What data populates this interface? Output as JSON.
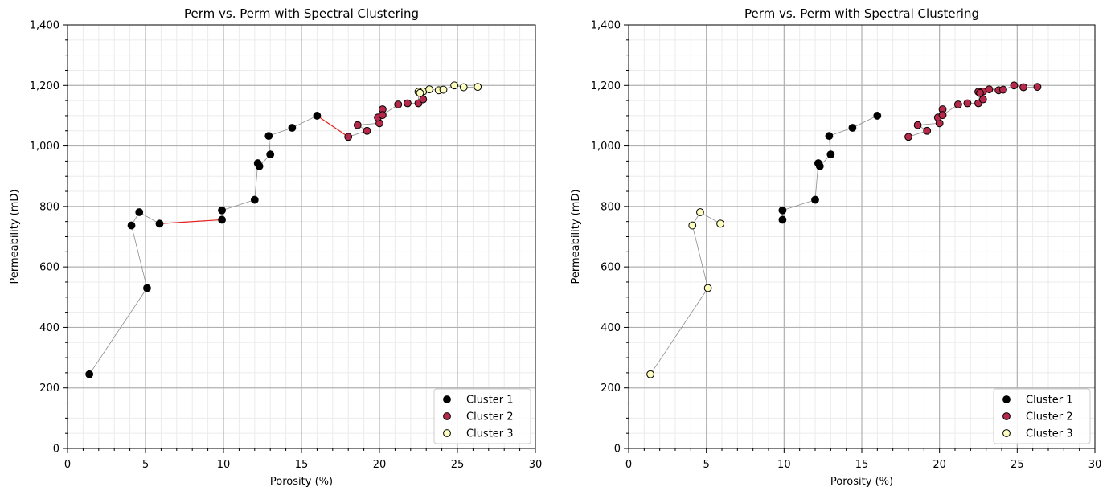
{
  "chart_data": [
    {
      "type": "scatter",
      "title": "Perm vs. Perm with Spectral Clustering",
      "xlabel": "Porosity (%)",
      "ylabel": "Permeability (mD)",
      "xlim": [
        0,
        30
      ],
      "ylim": [
        0,
        1400
      ],
      "x_ticks": [
        0,
        5,
        10,
        15,
        20,
        25,
        30
      ],
      "x_tick_labels": [
        "0",
        "5",
        "10",
        "15",
        "20",
        "25",
        "30"
      ],
      "y_ticks": [
        0,
        200,
        400,
        600,
        800,
        1000,
        1200,
        1400
      ],
      "y_tick_labels": [
        "0",
        "200",
        "400",
        "600",
        "800",
        "1,000",
        "1,200",
        "1,400"
      ],
      "grid": "major and minor",
      "legend_position": "lower-right",
      "path_x": [
        1.4,
        5.1,
        4.1,
        4.6,
        5.9,
        9.9,
        9.9,
        12.0,
        12.2,
        12.3,
        13.0,
        12.9,
        14.4,
        16.0,
        18.0,
        19.2,
        18.6,
        20.0,
        20.2,
        19.9,
        20.2,
        21.2,
        21.8,
        22.5,
        22.5,
        22.8,
        22.8,
        22.6,
        23.2,
        23.8,
        24.1,
        24.8,
        25.4,
        26.3
      ],
      "path_y": [
        245,
        530,
        737,
        781,
        743,
        756,
        787,
        822,
        943,
        933,
        972,
        1033,
        1060,
        1100,
        1030,
        1050,
        1069,
        1075,
        1121,
        1094,
        1102,
        1137,
        1141,
        1141,
        1179,
        1154,
        1180,
        1175,
        1187,
        1184,
        1186,
        1200,
        1194,
        1195
      ],
      "highlight_segments_x": [
        [
          5.9,
          9.9
        ],
        [
          16.0,
          18.0
        ]
      ],
      "highlight_segments_y": [
        [
          743,
          756
        ],
        [
          1100,
          1030
        ]
      ],
      "series": [
        {
          "name": "Cluster 1",
          "color": "#000000",
          "x": [
            1.4,
            5.1,
            4.1,
            4.6,
            5.9,
            9.9,
            9.9,
            12.0,
            12.2,
            12.3,
            13.0,
            12.9,
            14.4,
            16.0
          ],
          "y": [
            245,
            530,
            737,
            781,
            743,
            756,
            787,
            822,
            943,
            933,
            972,
            1033,
            1060,
            1100
          ]
        },
        {
          "name": "Cluster 2",
          "color": "#b5294a",
          "x": [
            18.0,
            19.2,
            18.6,
            20.0,
            20.2,
            19.9,
            20.2,
            21.2,
            21.8,
            22.5,
            22.8
          ],
          "y": [
            1030,
            1050,
            1069,
            1075,
            1121,
            1094,
            1102,
            1137,
            1141,
            1141,
            1154
          ]
        },
        {
          "name": "Cluster 3",
          "color": "#fcfdbf",
          "x": [
            22.5,
            22.8,
            22.6,
            23.2,
            23.8,
            24.1,
            24.8,
            25.4,
            26.3
          ],
          "y": [
            1179,
            1180,
            1175,
            1187,
            1184,
            1186,
            1200,
            1194,
            1195
          ]
        }
      ]
    },
    {
      "type": "scatter",
      "title": "Perm vs. Perm with Spectral Clustering",
      "xlabel": "Porosity (%)",
      "ylabel": "Permeability (mD)",
      "xlim": [
        0,
        30
      ],
      "ylim": [
        0,
        1400
      ],
      "x_ticks": [
        0,
        5,
        10,
        15,
        20,
        25,
        30
      ],
      "x_tick_labels": [
        "0",
        "5",
        "10",
        "15",
        "20",
        "25",
        "30"
      ],
      "y_ticks": [
        0,
        200,
        400,
        600,
        800,
        1000,
        1200,
        1400
      ],
      "y_tick_labels": [
        "0",
        "200",
        "400",
        "600",
        "800",
        "1,000",
        "1,200",
        "1,400"
      ],
      "grid": "major and minor",
      "legend_position": "lower-right",
      "path_groups": [
        {
          "x": [
            1.4,
            5.1,
            4.1,
            4.6,
            5.9
          ],
          "y": [
            245,
            530,
            737,
            781,
            743
          ]
        },
        {
          "x": [
            9.9,
            9.9,
            12.0,
            12.2,
            12.3,
            13.0,
            12.9,
            14.4,
            16.0
          ],
          "y": [
            756,
            787,
            822,
            943,
            933,
            972,
            1033,
            1060,
            1100
          ]
        },
        {
          "x": [
            18.0,
            19.2,
            18.6,
            20.0,
            20.2,
            19.9,
            20.2,
            21.2,
            21.8,
            22.5,
            22.5,
            22.8,
            22.8,
            22.6,
            23.2,
            23.8,
            24.1,
            24.8,
            25.4,
            26.3
          ],
          "y": [
            1030,
            1050,
            1069,
            1075,
            1121,
            1094,
            1102,
            1137,
            1141,
            1141,
            1179,
            1154,
            1180,
            1175,
            1187,
            1184,
            1186,
            1200,
            1194,
            1195
          ]
        }
      ],
      "series": [
        {
          "name": "Cluster 1",
          "color": "#000000",
          "x": [
            9.9,
            9.9,
            12.0,
            12.2,
            12.3,
            13.0,
            12.9,
            14.4,
            16.0
          ],
          "y": [
            756,
            787,
            822,
            943,
            933,
            972,
            1033,
            1060,
            1100
          ]
        },
        {
          "name": "Cluster 2",
          "color": "#b5294a",
          "x": [
            18.0,
            19.2,
            18.6,
            20.0,
            20.2,
            19.9,
            20.2,
            21.2,
            21.8,
            22.5,
            22.5,
            22.8,
            22.8,
            22.6,
            23.2,
            23.8,
            24.1,
            24.8,
            25.4,
            26.3
          ],
          "y": [
            1030,
            1050,
            1069,
            1075,
            1121,
            1094,
            1102,
            1137,
            1141,
            1141,
            1179,
            1154,
            1180,
            1175,
            1187,
            1184,
            1186,
            1200,
            1194,
            1195
          ]
        },
        {
          "name": "Cluster 3",
          "color": "#fcfdbf",
          "x": [
            1.4,
            5.1,
            4.1,
            4.6,
            5.9
          ],
          "y": [
            245,
            530,
            737,
            781,
            743
          ]
        }
      ]
    }
  ]
}
